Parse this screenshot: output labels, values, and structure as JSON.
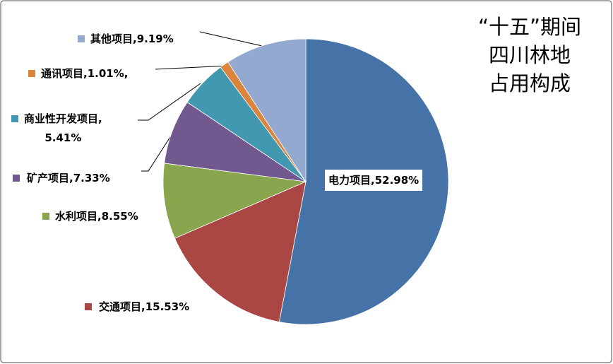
{
  "chart_data": {
    "type": "pie",
    "title": "“十五”期间\n四川林地\n占用构成",
    "values": [
      52.98,
      15.53,
      8.55,
      7.33,
      5.41,
      1.01,
      9.19
    ],
    "value_labels": [
      "电力项目,52.98%",
      "交通项目,15.53%",
      "水利项目,8.55%",
      "矿产项目,7.33%",
      "商业性开发项目,\n5.41%",
      "通讯项目,1.01%,",
      "其他项目,9.19%"
    ],
    "colors": [
      "#4572a7",
      "#aa4643",
      "#89a54e",
      "#71588f",
      "#4198af",
      "#db843d",
      "#93a9cf"
    ]
  }
}
